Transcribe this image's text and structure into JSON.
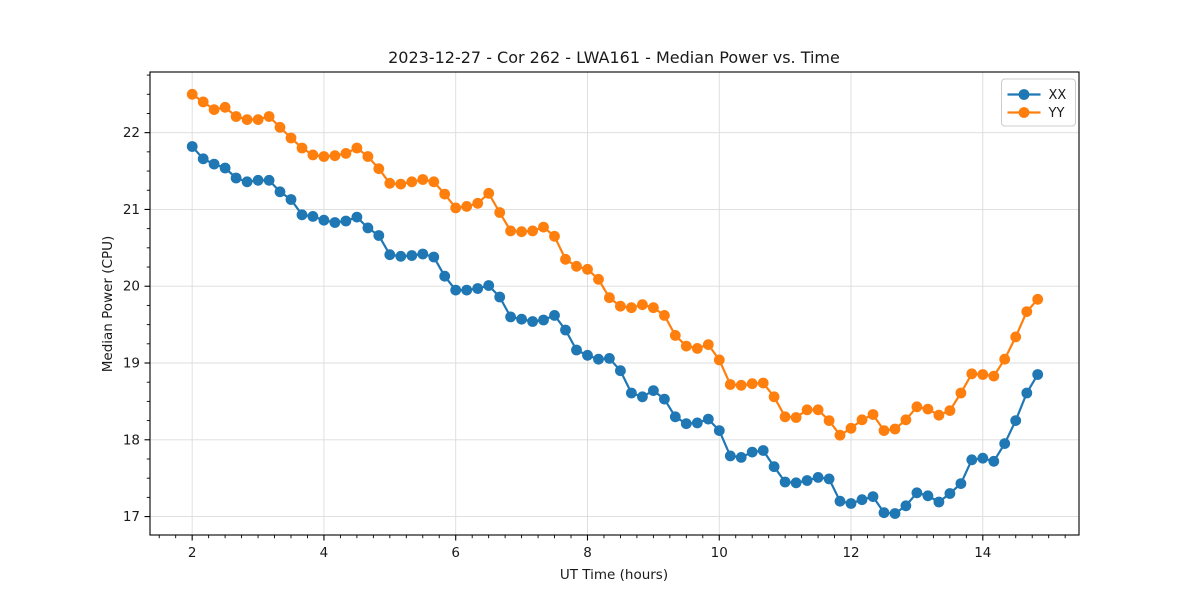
{
  "window": {
    "background": "#ffffff"
  },
  "chart_data": {
    "type": "line",
    "title": "2023-12-27 - Cor 262 - LWA161 - Median Power vs. Time",
    "xlabel": "UT Time (hours)",
    "ylabel": "Median Power (CPU)",
    "xlim": [
      1.36,
      15.46
    ],
    "ylim": [
      16.76,
      22.79
    ],
    "x_ticks": [
      2,
      4,
      6,
      8,
      10,
      12,
      14
    ],
    "y_ticks": [
      17,
      18,
      19,
      20,
      21,
      22
    ],
    "x_minor_step": 0.25,
    "y_minor_step": 0.25,
    "grid": true,
    "legend_position": "upper right",
    "marker": "circle",
    "colors": {
      "XX": "#1f77b4",
      "YY": "#ff7f0e",
      "grid": "#dcdcdc",
      "spine": "#000000"
    },
    "x": [
      2.0,
      2.167,
      2.333,
      2.5,
      2.667,
      2.833,
      3.0,
      3.167,
      3.333,
      3.5,
      3.667,
      3.833,
      4.0,
      4.167,
      4.333,
      4.5,
      4.667,
      4.833,
      5.0,
      5.167,
      5.333,
      5.5,
      5.667,
      5.833,
      6.0,
      6.167,
      6.333,
      6.5,
      6.667,
      6.833,
      7.0,
      7.167,
      7.333,
      7.5,
      7.667,
      7.833,
      8.0,
      8.167,
      8.333,
      8.5,
      8.667,
      8.833,
      9.0,
      9.167,
      9.333,
      9.5,
      9.667,
      9.833,
      10.0,
      10.167,
      10.333,
      10.5,
      10.667,
      10.833,
      11.0,
      11.167,
      11.333,
      11.5,
      11.667,
      11.833,
      12.0,
      12.167,
      12.333,
      12.5,
      12.667,
      12.833,
      13.0,
      13.167,
      13.333,
      13.5,
      13.667,
      13.833,
      14.0,
      14.167,
      14.333,
      14.5,
      14.667,
      14.833
    ],
    "series": [
      {
        "name": "XX",
        "color": "#1f77b4",
        "values": [
          21.82,
          21.66,
          21.59,
          21.54,
          21.41,
          21.36,
          21.38,
          21.38,
          21.23,
          21.13,
          20.93,
          20.91,
          20.86,
          20.83,
          20.85,
          20.9,
          20.76,
          20.66,
          20.41,
          20.39,
          20.4,
          20.42,
          20.38,
          20.13,
          19.95,
          19.95,
          19.97,
          20.01,
          19.86,
          19.6,
          19.57,
          19.54,
          19.56,
          19.62,
          19.43,
          19.17,
          19.1,
          19.05,
          19.06,
          18.9,
          18.61,
          18.56,
          18.64,
          18.53,
          18.3,
          18.21,
          18.22,
          18.27,
          18.12,
          17.79,
          17.77,
          17.84,
          17.86,
          17.65,
          17.45,
          17.44,
          17.47,
          17.51,
          17.49,
          17.2,
          17.17,
          17.22,
          17.26,
          17.05,
          17.04,
          17.14,
          17.31,
          17.27,
          17.19,
          17.3,
          17.43,
          17.74,
          17.76,
          17.72,
          17.95,
          18.25,
          18.61,
          18.85
        ]
      },
      {
        "name": "YY",
        "color": "#ff7f0e",
        "values": [
          22.5,
          22.4,
          22.3,
          22.33,
          22.21,
          22.17,
          22.17,
          22.21,
          22.07,
          21.93,
          21.8,
          21.71,
          21.69,
          21.7,
          21.73,
          21.8,
          21.69,
          21.53,
          21.34,
          21.33,
          21.36,
          21.39,
          21.36,
          21.2,
          21.02,
          21.04,
          21.08,
          21.21,
          20.96,
          20.72,
          20.71,
          20.72,
          20.77,
          20.65,
          20.35,
          20.26,
          20.22,
          20.09,
          19.85,
          19.74,
          19.72,
          19.76,
          19.72,
          19.62,
          19.36,
          19.22,
          19.19,
          19.24,
          19.04,
          18.72,
          18.71,
          18.73,
          18.74,
          18.56,
          18.3,
          18.29,
          18.39,
          18.39,
          18.25,
          18.06,
          18.15,
          18.26,
          18.33,
          18.12,
          18.14,
          18.26,
          18.43,
          18.4,
          18.32,
          18.38,
          18.61,
          18.86,
          18.85,
          18.83,
          19.05,
          19.34,
          19.67,
          19.83
        ]
      }
    ]
  },
  "legend": {
    "items": [
      {
        "label": "XX",
        "color": "#1f77b4"
      },
      {
        "label": "YY",
        "color": "#ff7f0e"
      }
    ]
  }
}
